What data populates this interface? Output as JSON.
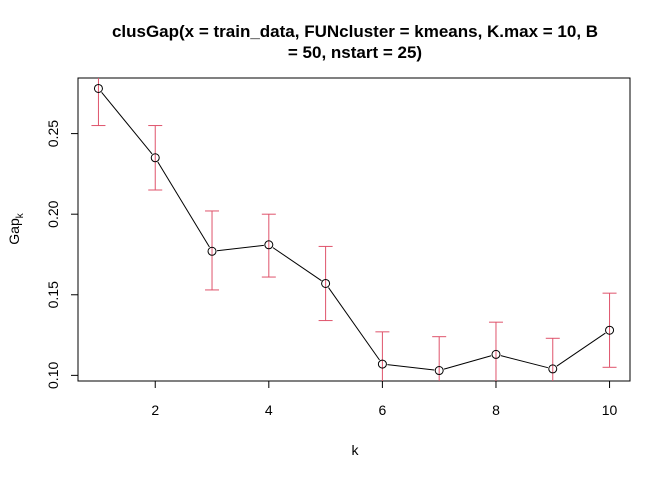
{
  "chart_data": {
    "type": "line",
    "title_lines": [
      "clusGap(x = train_data, FUNcluster = kmeans, K.max = 10, B",
      "= 50, nstart = 25)"
    ],
    "xlabel": "k",
    "ylabel_main": "Gap",
    "ylabel_sub": "k",
    "xlim": [
      0.64,
      10.36
    ],
    "ylim": [
      0.0965,
      0.2845
    ],
    "x_ticks": [
      2,
      4,
      6,
      8,
      10
    ],
    "y_ticks": [
      0.1,
      0.15,
      0.2,
      0.25
    ],
    "y_tick_labels": [
      "0.10",
      "0.15",
      "0.20",
      "0.25"
    ],
    "x": [
      1,
      2,
      3,
      4,
      5,
      6,
      7,
      8,
      9,
      10
    ],
    "gap": [
      0.278,
      0.235,
      0.177,
      0.181,
      0.157,
      0.107,
      0.103,
      0.113,
      0.104,
      0.128
    ],
    "se_lower": [
      0.255,
      0.215,
      0.153,
      0.161,
      0.134,
      0.088,
      0.083,
      0.093,
      0.085,
      0.105
    ],
    "se_upper": [
      0.301,
      0.255,
      0.202,
      0.2,
      0.18,
      0.127,
      0.124,
      0.133,
      0.123,
      0.151
    ],
    "line_color": "#000000",
    "errorbar_color": "#DF536B",
    "marker": "open-circle",
    "grid": false
  }
}
